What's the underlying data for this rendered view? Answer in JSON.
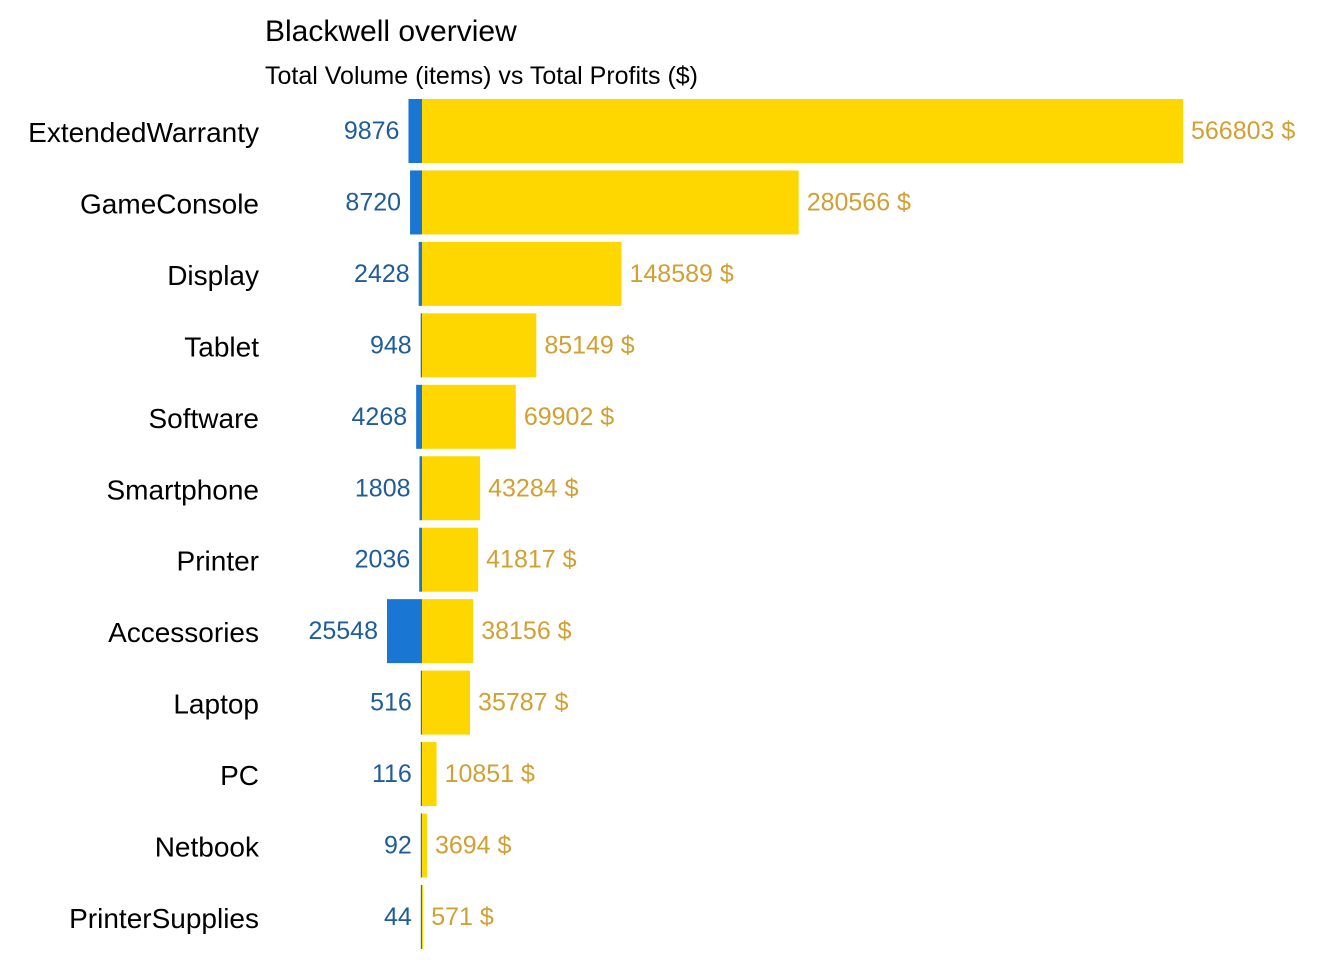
{
  "chart_data": {
    "type": "bar",
    "title": "Blackwell overview",
    "subtitle": "Total Volume (items) vs Total Profits ($)",
    "categories": [
      "ExtendedWarranty",
      "GameConsole",
      "Display",
      "Tablet",
      "Software",
      "Smartphone",
      "Printer",
      "Accessories",
      "Laptop",
      "PC",
      "Netbook",
      "PrinterSupplies"
    ],
    "series": [
      {
        "key": "volume",
        "values": [
          9876,
          8720,
          2428,
          948,
          4268,
          1808,
          2036,
          25548,
          516,
          116,
          92,
          44
        ],
        "labels": [
          "9876",
          "8720",
          "2428",
          "948",
          "4268",
          "1808",
          "2036",
          "25548",
          "516",
          "116",
          "92",
          "44"
        ],
        "direction": "left"
      },
      {
        "key": "profit",
        "values": [
          566803,
          280566,
          148589,
          85149,
          69902,
          43284,
          41817,
          38156,
          35787,
          10851,
          3694,
          571
        ],
        "labels": [
          "566803 $",
          "280566 $",
          "148589 $",
          "85149 $",
          "69902 $",
          "43284 $",
          "41817 $",
          "38156 $",
          "35787 $",
          "10851 $",
          "3694 $",
          "571 $"
        ],
        "direction": "right"
      }
    ],
    "colors": {
      "volume_bar": "#1976D2",
      "volume_text": "#1F5C99",
      "profit_bar": "#FFD700",
      "profit_text": "#D1A033"
    },
    "grid": false,
    "legend": "none"
  }
}
